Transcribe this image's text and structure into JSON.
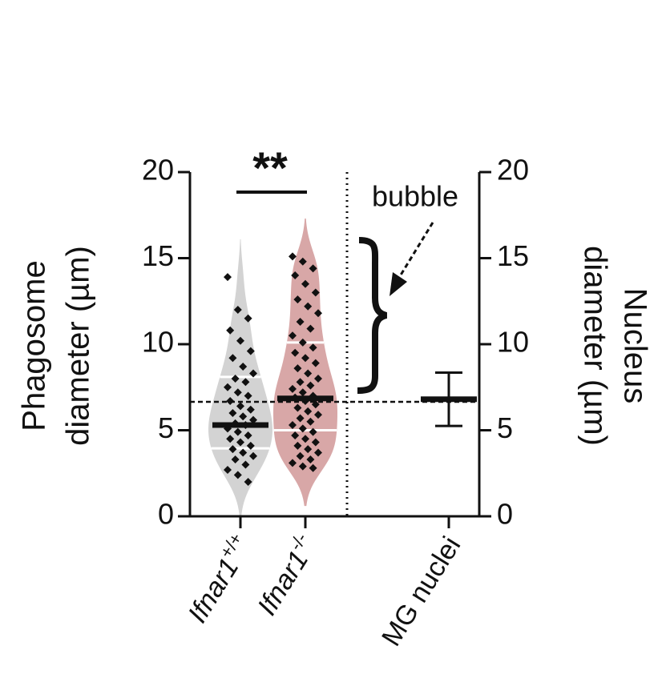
{
  "chart_data": {
    "type": "violin",
    "categories": [
      {
        "label": "Ifnar1",
        "superscript": "+/+"
      },
      {
        "label": "Ifnar1",
        "superscript": "-/-"
      },
      {
        "label": "MG nuclei"
      }
    ],
    "y_label": [
      "Phagosome",
      "diameter (µm)"
    ],
    "y2_label": [
      "Nucleus",
      "diameter (µm)"
    ],
    "ylim": [
      0,
      20
    ],
    "yticks": [
      0,
      5,
      10,
      15,
      20
    ],
    "y2lim": [
      0,
      20
    ],
    "y2ticks": [
      0,
      5,
      10,
      15,
      20
    ],
    "reference_line": 6.65,
    "series": [
      {
        "name": "Ifnar1+/+",
        "color": "#d3d3d3",
        "point_color": "#111111",
        "median": 5.3,
        "q1": 3.95,
        "q3": 8.1,
        "values": [
          13.9,
          12.0,
          11.5,
          10.8,
          10.2,
          9.6,
          9.2,
          8.7,
          8.3,
          8.0,
          7.8,
          7.5,
          7.2,
          7.0,
          6.7,
          6.4,
          6.2,
          6.0,
          5.8,
          5.6,
          5.4,
          5.3,
          5.1,
          4.9,
          4.7,
          4.5,
          4.3,
          4.1,
          3.9,
          3.7,
          3.5,
          3.3,
          3.0,
          2.7,
          2.4,
          2.0
        ]
      },
      {
        "name": "Ifnar1-/-",
        "color": "#d8a7a7",
        "point_color": "#111111",
        "median": 6.85,
        "q1": 5.0,
        "q3": 10.1,
        "values": [
          15.1,
          14.8,
          14.4,
          14.0,
          13.5,
          13.0,
          12.6,
          12.2,
          11.8,
          11.3,
          10.9,
          10.5,
          10.1,
          9.8,
          9.5,
          9.2,
          8.9,
          8.6,
          8.3,
          8.0,
          7.8,
          7.6,
          7.4,
          7.2,
          7.0,
          6.9,
          6.7,
          6.5,
          6.3,
          6.1,
          5.9,
          5.7,
          5.5,
          5.3,
          5.1,
          4.9,
          4.7,
          4.5,
          4.3,
          4.1,
          3.9,
          3.7,
          3.5,
          3.3,
          3.1,
          2.9,
          2.8
        ]
      },
      {
        "name": "MG nuclei",
        "axis": "y2",
        "color": "#111111",
        "values": [
          6.8
        ],
        "errors": [
          1.55
        ]
      }
    ],
    "annotations": {
      "significance": "**",
      "bubble": "bubble"
    }
  }
}
